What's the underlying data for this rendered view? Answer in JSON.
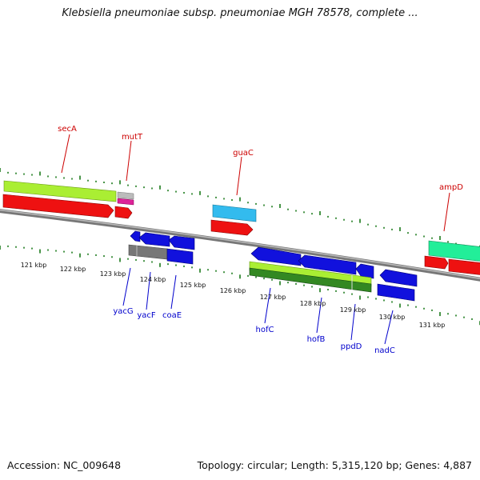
{
  "title": "Klebsiella pneumoniae subsp. pneumoniae MGH 78578, complete ...",
  "footer": {
    "accession": "Accession: NC_009648",
    "summary": "Topology: circular; Length: 5,315,120 bp; Genes: 4,887"
  },
  "colors": {
    "forward_label": "#cc0000",
    "reverse_label": "#0000cc",
    "backbone": "#888888",
    "tick": "#1a7a1a"
  },
  "scale_labels": [
    "121 kbp",
    "122 kbp",
    "123 kbp",
    "124 kbp",
    "125 kbp",
    "126 kbp",
    "127 kbp",
    "128 kbp",
    "129 kbp",
    "130 kbp",
    "131 kbp"
  ],
  "forward_genes": [
    {
      "name": "secA",
      "color": "#cc0000"
    },
    {
      "name": "mutT",
      "color": "#cc0000"
    },
    {
      "name": "guaC",
      "color": "#cc0000"
    },
    {
      "name": "ampD",
      "color": "#cc0000"
    }
  ],
  "reverse_genes": [
    {
      "name": "yacG",
      "color": "#0000cc"
    },
    {
      "name": "yacF",
      "color": "#0000cc"
    },
    {
      "name": "coaE",
      "color": "#0000cc"
    },
    {
      "name": "hofC",
      "color": "#0000cc"
    },
    {
      "name": "hofB",
      "color": "#0000cc"
    },
    {
      "name": "ppdD",
      "color": "#0000cc"
    },
    {
      "name": "nadC",
      "color": "#0000cc"
    }
  ]
}
